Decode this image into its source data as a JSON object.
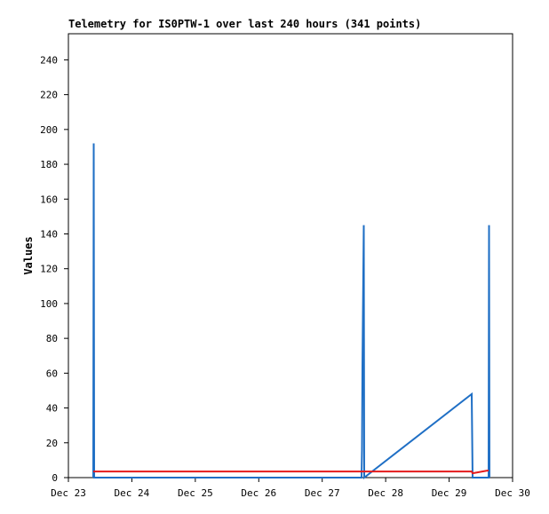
{
  "chart_data": {
    "type": "line",
    "title": "Telemetry for IS0PTW-1 over last 240 hours (341 points)",
    "y_label": "Values",
    "x": [
      23.392,
      23.399,
      23.406,
      27.62,
      27.627,
      27.634,
      27.655,
      27.662,
      29.356,
      29.37,
      29.6,
      29.622,
      29.629,
      29.636
    ],
    "series": [
      {
        "color": "#1f6fc5",
        "values": [
          0,
          192,
          0,
          0,
          16,
          64,
          145,
          0,
          48,
          0,
          0,
          0,
          145,
          0
        ]
      },
      {
        "color": "#e41a1c",
        "values": [
          3.5,
          3.5,
          3.5,
          3.5,
          3.5,
          3.5,
          3.5,
          3.5,
          3.5,
          2.5,
          4,
          4,
          null,
          null
        ]
      }
    ],
    "xlim": [
      23,
      30
    ],
    "xticks": [
      {
        "value": 23,
        "label": "Dec 23"
      },
      {
        "value": 24,
        "label": "Dec 24"
      },
      {
        "value": 25,
        "label": "Dec 25"
      },
      {
        "value": 26,
        "label": "Dec 26"
      },
      {
        "value": 27,
        "label": "Dec 27"
      },
      {
        "value": 28,
        "label": "Dec 28"
      },
      {
        "value": 29,
        "label": "Dec 29"
      },
      {
        "value": 30,
        "label": "Dec 30"
      }
    ],
    "ylim": [
      0,
      255
    ],
    "yticks": [
      0,
      20,
      40,
      60,
      80,
      100,
      120,
      140,
      160,
      180,
      200,
      220,
      240
    ],
    "grid": false
  }
}
